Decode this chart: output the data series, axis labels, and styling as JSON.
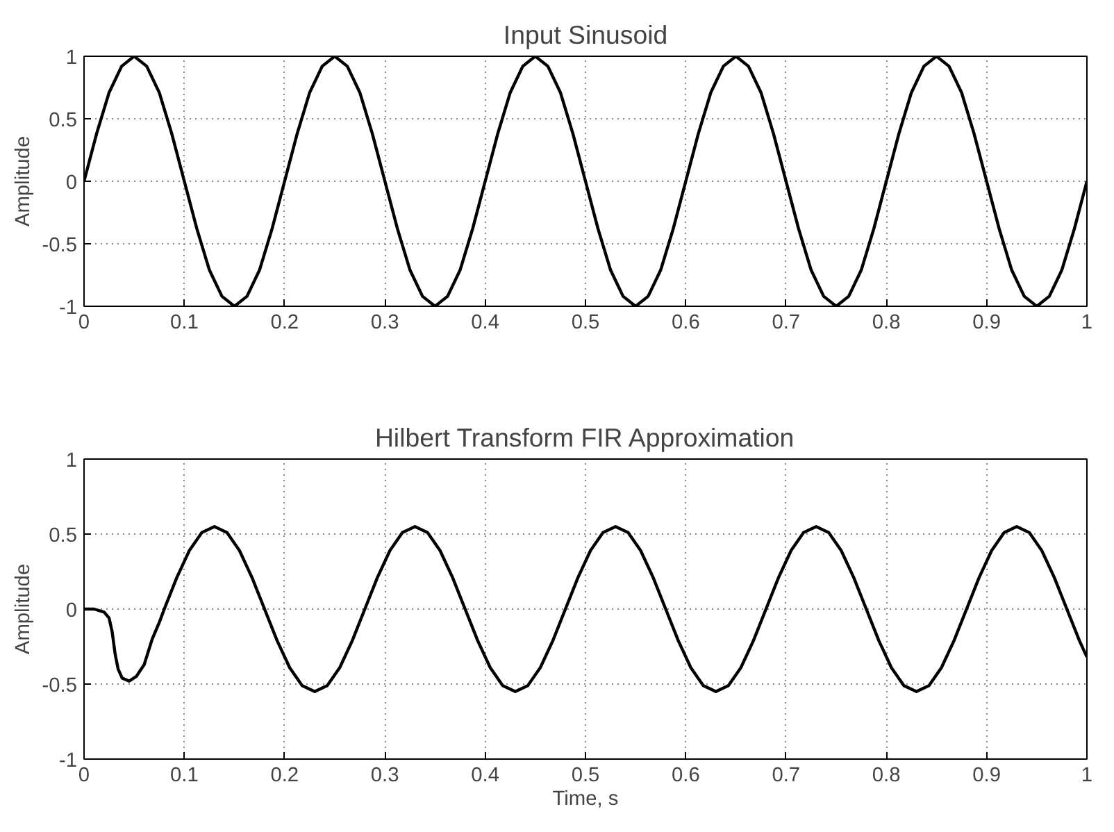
{
  "chart_data": [
    {
      "type": "line",
      "title": "Input Sinusoid",
      "ylabel": "Amplitude",
      "xlim": [
        0,
        1
      ],
      "ylim": [
        -1,
        1
      ],
      "xticks": [
        0,
        0.1,
        0.2,
        0.3,
        0.4,
        0.5,
        0.6,
        0.7,
        0.8,
        0.9,
        1
      ],
      "yticks": [
        -1,
        -0.5,
        0,
        0.5,
        1
      ],
      "grid": true,
      "line_style": "solid",
      "series": [
        {
          "color": "#000000",
          "x": [
            0,
            0.0125,
            0.025,
            0.0375,
            0.05,
            0.0625,
            0.075,
            0.0875,
            0.1,
            0.1125,
            0.125,
            0.1375,
            0.15,
            0.1625,
            0.175,
            0.1875,
            0.2,
            0.2125,
            0.225,
            0.2375,
            0.25,
            0.2625,
            0.275,
            0.2875,
            0.3,
            0.3125,
            0.325,
            0.3375,
            0.35,
            0.3625,
            0.375,
            0.3875,
            0.4,
            0.4125,
            0.425,
            0.4375,
            0.45,
            0.4625,
            0.475,
            0.4875,
            0.5,
            0.5125,
            0.525,
            0.5375,
            0.55,
            0.5625,
            0.575,
            0.5875,
            0.6,
            0.6125,
            0.625,
            0.6375,
            0.65,
            0.6625,
            0.675,
            0.6875,
            0.7,
            0.7125,
            0.725,
            0.7375,
            0.75,
            0.7625,
            0.775,
            0.7875,
            0.8,
            0.8125,
            0.825,
            0.8375,
            0.85,
            0.8625,
            0.875,
            0.8875,
            0.9,
            0.9125,
            0.925,
            0.9375,
            0.95,
            0.9625,
            0.975,
            0.9875,
            1
          ],
          "values": [
            0,
            0.38,
            0.71,
            0.92,
            1,
            0.92,
            0.71,
            0.38,
            0,
            -0.38,
            -0.71,
            -0.92,
            -1,
            -0.92,
            -0.71,
            -0.38,
            0,
            0.38,
            0.71,
            0.92,
            1,
            0.92,
            0.71,
            0.38,
            0,
            -0.38,
            -0.71,
            -0.92,
            -1,
            -0.92,
            -0.71,
            -0.38,
            0,
            0.38,
            0.71,
            0.92,
            1,
            0.92,
            0.71,
            0.38,
            0,
            -0.38,
            -0.71,
            -0.92,
            -1,
            -0.92,
            -0.71,
            -0.38,
            0,
            0.38,
            0.71,
            0.92,
            1,
            0.92,
            0.71,
            0.38,
            0,
            -0.38,
            -0.71,
            -0.92,
            -1,
            -0.92,
            -0.71,
            -0.38,
            0,
            0.38,
            0.71,
            0.92,
            1,
            0.92,
            0.71,
            0.38,
            0,
            -0.38,
            -0.71,
            -0.92,
            -1,
            -0.92,
            -0.71,
            -0.38,
            0
          ]
        }
      ]
    },
    {
      "type": "line",
      "title": "Hilbert Transform FIR Approximation",
      "xlabel": "Time, s",
      "ylabel": "Amplitude",
      "xlim": [
        0,
        1
      ],
      "ylim": [
        -1,
        1
      ],
      "xticks": [
        0,
        0.1,
        0.2,
        0.3,
        0.4,
        0.5,
        0.6,
        0.7,
        0.8,
        0.9,
        1
      ],
      "yticks": [
        -1,
        -0.5,
        0,
        0.5,
        1
      ],
      "grid": true,
      "line_style": "solid",
      "series": [
        {
          "color": "#000000",
          "x": [
            0,
            0.01,
            0.02,
            0.025,
            0.028,
            0.031,
            0.034,
            0.038,
            0.045,
            0.052,
            0.06,
            0.068,
            0.075,
            0.08,
            0.0925,
            0.105,
            0.1175,
            0.13,
            0.1425,
            0.155,
            0.1675,
            0.18,
            0.1925,
            0.205,
            0.2175,
            0.23,
            0.2425,
            0.255,
            0.2675,
            0.28,
            0.2925,
            0.305,
            0.3175,
            0.33,
            0.3425,
            0.355,
            0.3675,
            0.38,
            0.3925,
            0.405,
            0.4175,
            0.43,
            0.4425,
            0.455,
            0.4675,
            0.48,
            0.4925,
            0.505,
            0.5175,
            0.53,
            0.5425,
            0.555,
            0.5675,
            0.58,
            0.5925,
            0.605,
            0.6175,
            0.63,
            0.6425,
            0.655,
            0.6675,
            0.68,
            0.6925,
            0.705,
            0.7175,
            0.73,
            0.7425,
            0.755,
            0.7675,
            0.78,
            0.7925,
            0.805,
            0.8175,
            0.83,
            0.8425,
            0.855,
            0.8675,
            0.88,
            0.8925,
            0.905,
            0.9175,
            0.93,
            0.9425,
            0.955,
            0.9675,
            0.98,
            0.9925,
            1
          ],
          "values": [
            0,
            0,
            -0.02,
            -0.06,
            -0.15,
            -0.3,
            -0.4,
            -0.46,
            -0.48,
            -0.45,
            -0.37,
            -0.2,
            -0.09,
            0,
            0.21,
            0.39,
            0.51,
            0.55,
            0.51,
            0.39,
            0.21,
            0,
            -0.21,
            -0.39,
            -0.51,
            -0.55,
            -0.51,
            -0.39,
            -0.21,
            0,
            0.21,
            0.39,
            0.51,
            0.55,
            0.51,
            0.39,
            0.21,
            0,
            -0.21,
            -0.39,
            -0.51,
            -0.55,
            -0.51,
            -0.39,
            -0.21,
            0,
            0.21,
            0.39,
            0.51,
            0.55,
            0.51,
            0.39,
            0.21,
            0,
            -0.21,
            -0.39,
            -0.51,
            -0.55,
            -0.51,
            -0.39,
            -0.21,
            0,
            0.21,
            0.39,
            0.51,
            0.55,
            0.51,
            0.39,
            0.21,
            0,
            -0.21,
            -0.39,
            -0.51,
            -0.55,
            -0.51,
            -0.39,
            -0.21,
            0,
            0.21,
            0.39,
            0.51,
            0.55,
            0.51,
            0.39,
            0.21,
            0,
            -0.21,
            -0.32
          ]
        }
      ]
    }
  ]
}
